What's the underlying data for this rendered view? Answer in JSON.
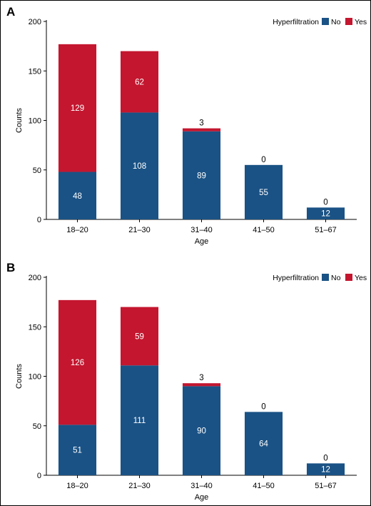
{
  "colors": {
    "no": "#1a5285",
    "yes": "#c4162f"
  },
  "chart_data": [
    {
      "panel": "A",
      "type": "bar",
      "stacked": true,
      "categories": [
        "18–20",
        "21–30",
        "31–40",
        "41–50",
        "51–67"
      ],
      "series": [
        {
          "name": "No",
          "values": [
            48,
            108,
            89,
            55,
            12
          ]
        },
        {
          "name": "Yes",
          "values": [
            129,
            62,
            3,
            0,
            0
          ]
        }
      ],
      "xlabel": "Age",
      "ylabel": "Counts",
      "ylim": [
        0,
        200
      ],
      "yticks": [
        0,
        50,
        100,
        150,
        200
      ],
      "legend_title": "Hyperfiltration",
      "legend_position": "top-right",
      "grid": false
    },
    {
      "panel": "B",
      "type": "bar",
      "stacked": true,
      "categories": [
        "18–20",
        "21–30",
        "31–40",
        "41–50",
        "51–67"
      ],
      "series": [
        {
          "name": "No",
          "values": [
            51,
            111,
            90,
            64,
            12
          ]
        },
        {
          "name": "Yes",
          "values": [
            126,
            59,
            3,
            0,
            0
          ]
        }
      ],
      "xlabel": "Age",
      "ylabel": "Counts",
      "ylim": [
        0,
        200
      ],
      "yticks": [
        0,
        50,
        100,
        150,
        200
      ],
      "legend_title": "Hyperfiltration",
      "legend_position": "top-right",
      "grid": false
    }
  ]
}
